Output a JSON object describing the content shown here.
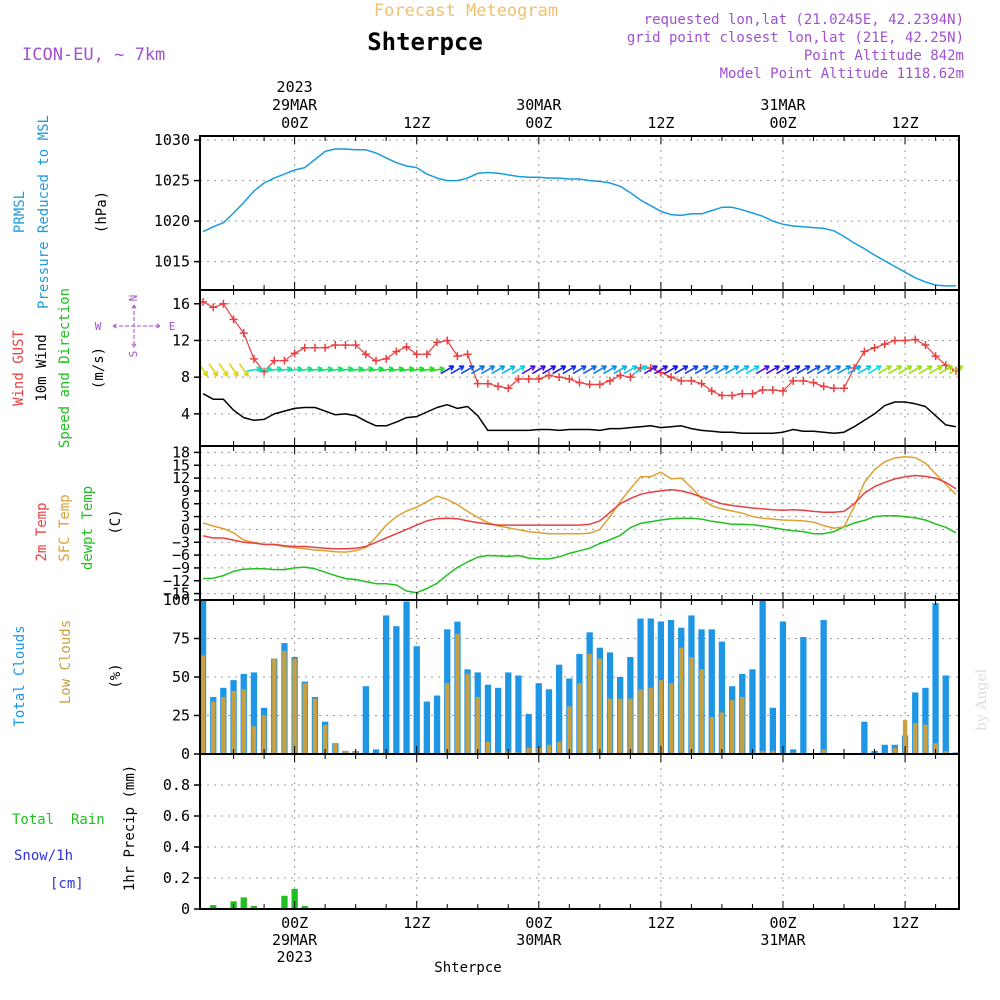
{
  "header": {
    "forecast_title": "Forecast Meteogram",
    "location": "Shterpce",
    "model": "ICON-EU, ~ 7km",
    "requested": "requested lon,lat (21.0245E, 42.2394N)",
    "grid_point": "grid point closest lon,lat (21E, 42.25N)",
    "point_altitude": "Point Altitude 842m",
    "model_altitude": "Model Point Altitude 1118.62m",
    "footer_location": "Shterpce",
    "watermark": "by Angel"
  },
  "time_axis": {
    "top_labels": [
      {
        "x": 0,
        "lines": [
          "2023",
          "29MAR",
          "00Z"
        ]
      },
      {
        "x": 12,
        "lines": [
          "12Z"
        ]
      },
      {
        "x": 24,
        "lines": [
          "30MAR",
          "00Z"
        ]
      },
      {
        "x": 36,
        "lines": [
          "12Z"
        ]
      },
      {
        "x": 48,
        "lines": [
          "31MAR",
          "00Z"
        ]
      },
      {
        "x": 60,
        "lines": [
          "12Z"
        ]
      }
    ],
    "bottom_labels": [
      {
        "x": 0,
        "lines": [
          "00Z",
          "29MAR",
          "2023"
        ]
      },
      {
        "x": 12,
        "lines": [
          "12Z"
        ]
      },
      {
        "x": 24,
        "lines": [
          "00Z",
          "30MAR"
        ]
      },
      {
        "x": 36,
        "lines": [
          "12Z"
        ]
      },
      {
        "x": 48,
        "lines": [
          "00Z",
          "31MAR"
        ]
      },
      {
        "x": 60,
        "lines": [
          "12Z"
        ]
      }
    ]
  },
  "panel_labels": {
    "prmsl": [
      "PRMSL",
      "Pressure Reduced to MSL",
      "(hPa)"
    ],
    "wind": [
      "Wind GUST",
      "10m Wind",
      "Speed and Direction",
      "(m/s)"
    ],
    "compass": {
      "n": "N",
      "s": "S",
      "w": "W",
      "e": "E"
    },
    "temp": [
      "2m Temp",
      "SFC Temp",
      "dewpt Temp",
      "(C)"
    ],
    "clouds": [
      "Total Clouds",
      "Low Clouds",
      "(%)"
    ],
    "precip": [
      "Total  Rain",
      "Snow/1h",
      "[cm]",
      "1hr Precip (mm)"
    ]
  },
  "colors": {
    "prmsl": "#1a9bdc",
    "gust": "#e84040",
    "wind": "#000000",
    "temp2m": "#e84040",
    "sfc": "#e0a030",
    "dewpt": "#20c020",
    "total_clouds": "#1e96e6",
    "low_clouds": "#c8a040",
    "rain": "#20c020",
    "snow": "#3030e0",
    "header_purple": "#a050d0",
    "forecast_title": "#f0c070"
  },
  "chart_data": [
    {
      "type": "line",
      "title": "PRMSL Pressure Reduced to MSL",
      "unit": "hPa",
      "x_unit": "hours since 29MAR 00Z",
      "ylim": [
        1011.5,
        1030.5
      ],
      "yticks": [
        1015,
        1020,
        1025,
        1030
      ],
      "x": [
        -9,
        -8,
        -7,
        -6,
        -5,
        -4,
        -3,
        -2,
        -1,
        0,
        1,
        2,
        3,
        4,
        5,
        6,
        7,
        8,
        9,
        10,
        11,
        12,
        13,
        14,
        15,
        16,
        17,
        18,
        19,
        20,
        21,
        22,
        23,
        24,
        25,
        26,
        27,
        28,
        29,
        30,
        31,
        32,
        33,
        34,
        35,
        36,
        37,
        38,
        39,
        40,
        41,
        42,
        43,
        44,
        45,
        46,
        47,
        48,
        49,
        50,
        51,
        52,
        53,
        54,
        55,
        56,
        57,
        58,
        59,
        60,
        61,
        62,
        63,
        64,
        65
      ],
      "series": [
        {
          "name": "PRMSL",
          "values": [
            1018.7,
            1019.3,
            1019.8,
            1021.0,
            1022.3,
            1023.7,
            1024.7,
            1025.3,
            1025.8,
            1026.3,
            1026.6,
            1027.6,
            1028.6,
            1028.9,
            1028.9,
            1028.8,
            1028.8,
            1028.4,
            1027.8,
            1027.2,
            1026.8,
            1026.6,
            1025.8,
            1025.3,
            1025.0,
            1025.0,
            1025.3,
            1025.9,
            1026.0,
            1025.9,
            1025.7,
            1025.5,
            1025.4,
            1025.4,
            1025.3,
            1025.3,
            1025.2,
            1025.2,
            1025.0,
            1024.9,
            1024.7,
            1024.3,
            1023.5,
            1022.6,
            1021.9,
            1021.2,
            1020.8,
            1020.7,
            1020.9,
            1020.9,
            1021.3,
            1021.7,
            1021.7,
            1021.4,
            1021.0,
            1020.6,
            1020.0,
            1019.6,
            1019.4,
            1019.3,
            1019.2,
            1019.1,
            1018.8,
            1018.1,
            1017.3,
            1016.6,
            1015.8,
            1015.1,
            1014.4,
            1013.7,
            1013.0,
            1012.5,
            1012.1,
            1012.0,
            1012.0
          ]
        }
      ]
    },
    {
      "type": "line",
      "title": "Wind GUST, 10m Wind Speed and Direction",
      "unit": "m/s",
      "x_unit": "hours since 29MAR 00Z",
      "ylim": [
        0.5,
        17.5
      ],
      "yticks": [
        4,
        8,
        12,
        16
      ],
      "x": [
        -9,
        -8,
        -7,
        -6,
        -5,
        -4,
        -3,
        -2,
        -1,
        0,
        1,
        2,
        3,
        4,
        5,
        6,
        7,
        8,
        9,
        10,
        11,
        12,
        13,
        14,
        15,
        16,
        17,
        18,
        19,
        20,
        21,
        22,
        23,
        24,
        25,
        26,
        27,
        28,
        29,
        30,
        31,
        32,
        33,
        34,
        35,
        36,
        37,
        38,
        39,
        40,
        41,
        42,
        43,
        44,
        45,
        46,
        47,
        48,
        49,
        50,
        51,
        52,
        53,
        54,
        55,
        56,
        57,
        58,
        59,
        60,
        61,
        62,
        63,
        64,
        65
      ],
      "series": [
        {
          "name": "Wind GUST",
          "values": [
            16.2,
            15.6,
            16.0,
            14.3,
            12.8,
            10.0,
            8.6,
            9.8,
            9.8,
            10.6,
            11.2,
            11.2,
            11.2,
            11.5,
            11.5,
            11.5,
            10.5,
            9.8,
            10.0,
            10.8,
            11.3,
            10.5,
            10.5,
            11.8,
            12.0,
            10.3,
            10.5,
            7.3,
            7.3,
            7.0,
            6.8,
            7.8,
            7.8,
            7.8,
            8.2,
            8.0,
            7.8,
            7.4,
            7.2,
            7.2,
            7.6,
            8.2,
            8.0,
            9.0,
            9.0,
            8.5,
            8.0,
            7.6,
            7.6,
            7.3,
            6.5,
            6.0,
            6.0,
            6.2,
            6.2,
            6.6,
            6.6,
            6.5,
            7.6,
            7.6,
            7.4,
            7.0,
            6.8,
            6.8,
            9.0,
            10.8,
            11.2,
            11.6,
            12.0,
            12.0,
            12.1,
            11.5,
            10.3,
            9.3,
            8.7
          ]
        },
        {
          "name": "10m Wind",
          "values": [
            6.2,
            5.6,
            5.6,
            4.4,
            3.6,
            3.3,
            3.4,
            4.0,
            4.3,
            4.6,
            4.7,
            4.7,
            4.3,
            3.9,
            4.0,
            3.8,
            3.2,
            2.7,
            2.7,
            3.1,
            3.6,
            3.7,
            4.2,
            4.7,
            5.0,
            4.6,
            4.8,
            3.8,
            2.2,
            2.2,
            2.2,
            2.2,
            2.2,
            2.3,
            2.3,
            2.2,
            2.3,
            2.3,
            2.3,
            2.2,
            2.4,
            2.4,
            2.5,
            2.6,
            2.7,
            2.5,
            2.6,
            2.7,
            2.4,
            2.2,
            2.1,
            2.0,
            2.0,
            1.9,
            1.9,
            1.9,
            1.9,
            2.0,
            2.3,
            2.1,
            2.1,
            2.0,
            1.9,
            2.0,
            2.6,
            3.3,
            4.0,
            4.9,
            5.3,
            5.3,
            5.1,
            4.8,
            3.8,
            2.8,
            2.6
          ]
        }
      ]
    },
    {
      "type": "line",
      "title": "2m Temp, SFC Temp, dewpt Temp",
      "unit": "C",
      "x_unit": "hours since 29MAR 00Z",
      "ylim": [
        -16.5,
        19.5
      ],
      "yticks": [
        -15,
        -12,
        -9,
        -6,
        -3,
        0,
        3,
        6,
        9,
        12,
        15,
        18
      ],
      "x": [
        -9,
        -8,
        -7,
        -6,
        -5,
        -4,
        -3,
        -2,
        -1,
        0,
        1,
        2,
        3,
        4,
        5,
        6,
        7,
        8,
        9,
        10,
        11,
        12,
        13,
        14,
        15,
        16,
        17,
        18,
        19,
        20,
        21,
        22,
        23,
        24,
        25,
        26,
        27,
        28,
        29,
        30,
        31,
        32,
        33,
        34,
        35,
        36,
        37,
        38,
        39,
        40,
        41,
        42,
        43,
        44,
        45,
        46,
        47,
        48,
        49,
        50,
        51,
        52,
        53,
        54,
        55,
        56,
        57,
        58,
        59,
        60,
        61,
        62,
        63,
        64,
        65
      ],
      "series": [
        {
          "name": "2m Temp",
          "values": [
            -1.5,
            -2.0,
            -2.0,
            -2.5,
            -3.0,
            -3.2,
            -3.5,
            -3.5,
            -3.8,
            -4.0,
            -4.0,
            -4.2,
            -4.4,
            -4.5,
            -4.5,
            -4.4,
            -4.0,
            -3.0,
            -2.0,
            -1.0,
            0.0,
            1.0,
            2.0,
            2.5,
            2.6,
            2.5,
            2.0,
            1.6,
            1.3,
            1.0,
            1.0,
            1.0,
            1.0,
            1.0,
            1.0,
            1.0,
            1.0,
            1.0,
            1.2,
            2.0,
            4.0,
            6.0,
            7.2,
            8.2,
            8.7,
            9.0,
            9.3,
            9.0,
            8.4,
            7.6,
            6.8,
            6.0,
            5.6,
            5.3,
            5.0,
            4.8,
            4.6,
            4.5,
            4.6,
            4.5,
            4.2,
            4.0,
            4.0,
            4.2,
            6.0,
            8.5,
            10.0,
            11.0,
            11.8,
            12.3,
            12.6,
            12.4,
            12.0,
            11.0,
            9.5
          ]
        },
        {
          "name": "SFC Temp",
          "values": [
            1.5,
            0.8,
            0.2,
            -0.8,
            -2.5,
            -3.0,
            -3.5,
            -3.6,
            -4.0,
            -4.3,
            -4.5,
            -4.8,
            -5.0,
            -5.2,
            -5.3,
            -5.0,
            -4.2,
            -1.8,
            1.0,
            3.0,
            4.3,
            5.2,
            6.5,
            7.8,
            7.0,
            5.8,
            4.2,
            2.8,
            1.6,
            0.8,
            0.4,
            -0.1,
            -0.5,
            -0.8,
            -1.0,
            -1.0,
            -1.0,
            -1.0,
            -0.9,
            0.0,
            3.0,
            6.5,
            9.5,
            12.3,
            12.3,
            13.4,
            11.8,
            12.0,
            9.8,
            7.2,
            5.5,
            4.8,
            4.3,
            3.8,
            3.0,
            2.6,
            2.4,
            2.2,
            2.1,
            2.0,
            1.7,
            0.9,
            0.3,
            0.6,
            5.3,
            11.0,
            14.0,
            15.8,
            16.7,
            17.0,
            16.8,
            15.5,
            13.0,
            10.5,
            8.2
          ]
        },
        {
          "name": "dewpt Temp",
          "values": [
            -11.5,
            -11.4,
            -10.8,
            -9.8,
            -9.3,
            -9.2,
            -9.2,
            -9.4,
            -9.4,
            -9.0,
            -8.8,
            -9.2,
            -10.0,
            -10.8,
            -11.5,
            -11.7,
            -12.2,
            -12.7,
            -12.7,
            -13.0,
            -14.4,
            -14.8,
            -13.8,
            -12.6,
            -10.6,
            -8.9,
            -7.6,
            -6.5,
            -6.1,
            -6.2,
            -6.3,
            -6.1,
            -6.7,
            -6.9,
            -6.9,
            -6.4,
            -5.6,
            -5.0,
            -4.4,
            -3.3,
            -2.4,
            -1.4,
            0.4,
            1.4,
            1.8,
            2.2,
            2.5,
            2.6,
            2.6,
            2.4,
            1.9,
            1.6,
            1.2,
            1.2,
            1.1,
            0.8,
            0.4,
            0.0,
            -0.3,
            -0.5,
            -1.0,
            -1.0,
            -0.5,
            0.6,
            1.5,
            2.1,
            3.0,
            3.2,
            3.2,
            3.0,
            2.7,
            2.2,
            1.3,
            0.5,
            -0.8
          ]
        }
      ]
    },
    {
      "type": "bar",
      "title": "Total Clouds, Low Clouds",
      "unit": "%",
      "x_unit": "hours since 29MAR 00Z",
      "ylim": [
        0,
        100
      ],
      "yticks": [
        0,
        25,
        50,
        75,
        100
      ],
      "x": [
        -9,
        -8,
        -7,
        -6,
        -5,
        -4,
        -3,
        -2,
        -1,
        0,
        1,
        2,
        3,
        4,
        5,
        6,
        7,
        8,
        9,
        10,
        11,
        12,
        13,
        14,
        15,
        16,
        17,
        18,
        19,
        20,
        21,
        22,
        23,
        24,
        25,
        26,
        27,
        28,
        29,
        30,
        31,
        32,
        33,
        34,
        35,
        36,
        37,
        38,
        39,
        40,
        41,
        42,
        43,
        44,
        45,
        46,
        47,
        48,
        49,
        50,
        51,
        52,
        53,
        54,
        55,
        56,
        57,
        58,
        59,
        60,
        61,
        62,
        63,
        64,
        65
      ],
      "series": [
        {
          "name": "Total Clouds",
          "values": [
            100,
            37,
            43,
            48,
            52,
            53,
            30,
            62,
            72,
            63,
            47,
            37,
            21,
            7,
            2,
            2,
            44,
            3,
            90,
            83,
            99,
            70,
            34,
            38,
            81,
            86,
            55,
            53,
            45,
            43,
            53,
            51,
            26,
            46,
            42,
            58,
            49,
            65,
            79,
            69,
            66,
            50,
            63,
            88,
            88,
            86,
            87,
            82,
            90,
            81,
            81,
            73,
            44,
            52,
            55,
            100,
            30,
            86,
            3,
            76,
            0,
            87,
            0,
            0,
            0,
            21,
            2,
            6,
            6,
            12,
            40,
            43,
            98,
            51,
            1
          ]
        },
        {
          "name": "Low Clouds",
          "values": [
            64,
            34,
            37,
            41,
            42,
            18,
            25,
            62,
            67,
            62,
            46,
            36,
            19,
            7,
            2,
            2,
            0,
            0,
            0,
            0,
            0,
            0,
            0,
            0,
            46,
            78,
            52,
            37,
            8,
            1,
            2,
            1,
            4,
            4,
            6,
            8,
            31,
            46,
            65,
            62,
            36,
            36,
            36,
            42,
            43,
            48,
            46,
            69,
            63,
            55,
            24,
            27,
            35,
            37,
            0,
            2,
            2,
            0,
            1,
            0,
            0,
            3,
            0,
            0,
            0,
            0,
            0,
            0,
            4,
            22,
            20,
            19,
            7,
            2,
            0
          ]
        }
      ]
    },
    {
      "type": "bar",
      "title": "1hr Precip",
      "unit": "mm",
      "x_unit": "hours since 29MAR 00Z",
      "ylim": [
        0,
        1.0
      ],
      "yticks": [
        0,
        0.2,
        0.4,
        0.6,
        0.8
      ],
      "x": [
        -9,
        -8,
        -7,
        -6,
        -5,
        -4,
        -3,
        -2,
        -1,
        0,
        1,
        2,
        3
      ],
      "series": [
        {
          "name": "Total Rain",
          "values": [
            0.0,
            0.025,
            0.0,
            0.05,
            0.075,
            0.02,
            0.0,
            0.0,
            0.085,
            0.13,
            0.02,
            0.0,
            0.0
          ]
        }
      ]
    }
  ]
}
